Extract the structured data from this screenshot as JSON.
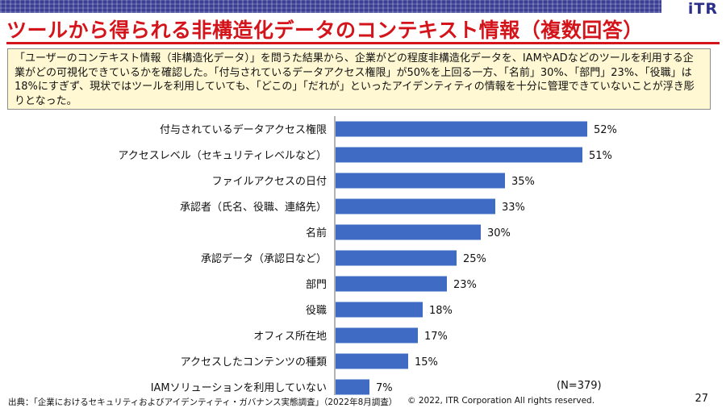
{
  "header": {
    "logo": "iTR",
    "title": "ツールから得られる非構造化データのコンテキスト情報（複数回答）"
  },
  "summary": {
    "text": "「ユーザーのコンテキスト情報（非構造化データ）」を問うた結果から、企業がどの程度非構造化データを、IAMやADなどのツールを利用する企業がどの可視化できているかを確認した。「付与されているデータアクセス権限」が50%を上回る一方、「名前」30%、「部門」23%、「役職」は18%にすぎず、現状ではツールを利用していても、「どこの」「だれが」といったアイデンティティの情報を十分に管理できていないことが浮き彫りとなった。"
  },
  "chart_data": {
    "type": "bar",
    "orientation": "horizontal",
    "categories": [
      "付与されているデータアクセス権限",
      "アクセスレベル（セキュリティレベルなど）",
      "ファイルアクセスの日付",
      "承認者（氏名、役職、連絡先）",
      "名前",
      "承認データ（承認日など）",
      "部門",
      "役職",
      "オフィス所在地",
      "アクセスしたコンテンツの種類",
      "IAMソリューションを利用していない"
    ],
    "values": [
      52,
      51,
      35,
      33,
      30,
      25,
      23,
      18,
      17,
      15,
      7
    ],
    "value_labels": [
      "52%",
      "51%",
      "35%",
      "33%",
      "30%",
      "25%",
      "23%",
      "18%",
      "17%",
      "15%",
      "7%"
    ],
    "bar_color": "#3f6bc4",
    "xlim": [
      0,
      100
    ],
    "note": "(N=379)"
  },
  "footer": {
    "source": "出典：「企業におけるセキュリティおよびアイデンティティ・ガバナンス実態調査」（2022年8月調査）",
    "copyright": "© 2022, ITR Corporation  All rights reserved.",
    "page": "27"
  }
}
